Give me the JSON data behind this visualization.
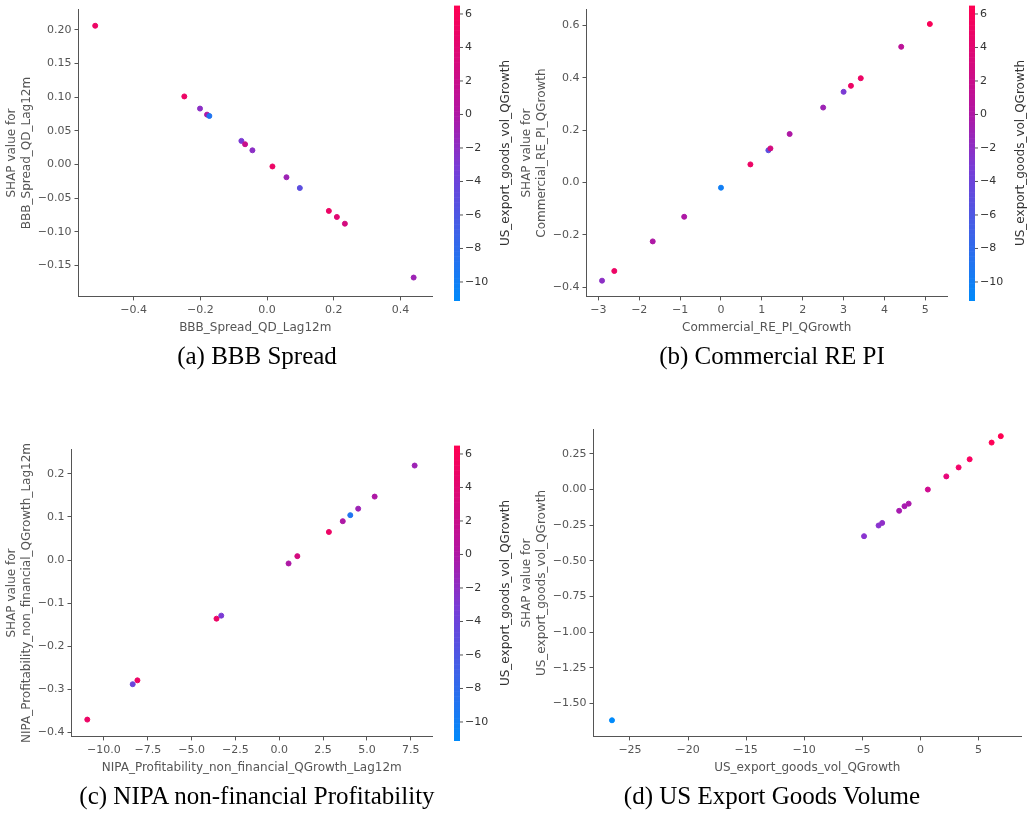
{
  "chart_data": [
    {
      "type": "scatter",
      "title": "(a) BBB Spread",
      "xlabel": "BBB_Spread_QD_Lag12m",
      "ylabel": "SHAP value for\nBBB_Spread_QD_Lag12m",
      "clabel": "US_export_goods_vol_QGrowth",
      "marker": "circle",
      "grid": false,
      "x": [
        -0.515,
        -0.248,
        -0.201,
        -0.18,
        -0.173,
        -0.077,
        -0.066,
        -0.044,
        0.016,
        0.058,
        0.098,
        0.185,
        0.209,
        0.233,
        0.439
      ],
      "values": [
        0.206,
        0.101,
        0.083,
        0.074,
        0.072,
        0.035,
        0.03,
        0.021,
        -0.003,
        -0.019,
        -0.035,
        -0.069,
        -0.078,
        -0.088,
        -0.168
      ],
      "cvalues": [
        5,
        5,
        -2,
        0,
        -9,
        -3,
        2,
        -2,
        5,
        -1,
        -5,
        5,
        4,
        3,
        -1
      ],
      "clim": [
        -11.1,
        6.5
      ],
      "cticks": [
        {
          "value": -10,
          "label": "−10"
        },
        {
          "value": -8,
          "label": "−8"
        },
        {
          "value": -6,
          "label": "−6"
        },
        {
          "value": -4,
          "label": "−4"
        },
        {
          "value": -2,
          "label": "−2"
        },
        0,
        2,
        4,
        6
      ],
      "xlim": [
        -0.565,
        0.494
      ],
      "xticks": [
        {
          "value": -0.4,
          "label": "−0.4"
        },
        {
          "value": -0.2,
          "label": "−0.2"
        },
        {
          "value": 0,
          "label": "0.0"
        },
        {
          "value": 0.2,
          "label": "0.2"
        },
        {
          "value": 0.4,
          "label": "0.4"
        }
      ],
      "ylim": [
        -0.196,
        0.23
      ],
      "yticks": [
        {
          "value": -0.15,
          "label": "−0.15"
        },
        {
          "value": -0.1,
          "label": "−0.10"
        },
        {
          "value": -0.05,
          "label": "−0.05"
        },
        {
          "value": 0,
          "label": "0.00"
        },
        {
          "value": 0.05,
          "label": "0.05"
        },
        {
          "value": 0.1,
          "label": "0.10"
        },
        {
          "value": 0.15,
          "label": "0.15"
        },
        {
          "value": 0.2,
          "label": "0.20"
        }
      ]
    },
    {
      "type": "scatter",
      "title": "(b) Commercial RE PI",
      "xlabel": "Commercial_RE_PI_QGrowth",
      "ylabel": "SHAP value for\nCommercial_RE_PI_QGrowth",
      "clabel": "US_export_goods_vol_QGrowth",
      "marker": "circle",
      "grid": false,
      "x": [
        -2.91,
        -2.61,
        -1.67,
        -0.9,
        0.0,
        0.72,
        1.16,
        1.21,
        1.68,
        2.5,
        3.0,
        3.18,
        3.42,
        4.41,
        5.11
      ],
      "values": [
        -0.375,
        -0.338,
        -0.225,
        -0.131,
        -0.02,
        0.069,
        0.123,
        0.13,
        0.185,
        0.286,
        0.346,
        0.369,
        0.398,
        0.518,
        0.605
      ],
      "cvalues": [
        -2,
        5,
        0,
        0,
        -10,
        5,
        -5,
        3,
        0,
        -1,
        -3,
        5,
        5,
        1,
        6
      ],
      "clim": [
        -11.1,
        6.5
      ],
      "cticks": [
        {
          "value": -10,
          "label": "−10"
        },
        {
          "value": -8,
          "label": "−8"
        },
        {
          "value": -6,
          "label": "−6"
        },
        {
          "value": -4,
          "label": "−4"
        },
        {
          "value": -2,
          "label": "−2"
        },
        0,
        2,
        4,
        6
      ],
      "xlim": [
        -3.29,
        5.53
      ],
      "xticks": [
        {
          "value": -3,
          "label": "−3"
        },
        {
          "value": -2,
          "label": "−2"
        },
        {
          "value": -1,
          "label": "−1"
        },
        0,
        1,
        2,
        3,
        4,
        5
      ],
      "ylim": [
        -0.435,
        0.66
      ],
      "yticks": [
        {
          "value": -0.4,
          "label": "−0.4"
        },
        {
          "value": -0.2,
          "label": "−0.2"
        },
        {
          "value": 0,
          "label": "0.0"
        },
        {
          "value": 0.2,
          "label": "0.2"
        },
        {
          "value": 0.4,
          "label": "0.4"
        },
        {
          "value": 0.6,
          "label": "0.6"
        }
      ]
    },
    {
      "type": "scatter",
      "title": "(c) NIPA non-financial Profitability",
      "xlabel": "NIPA_Profitability_non_financial_QGrowth_Lag12m",
      "ylabel": "SHAP value for\nNIPA_Profitability_non_financial_QGrowth_Lag12m",
      "clabel": "US_export_goods_vol_QGrowth",
      "marker": "circle",
      "grid": false,
      "x": [
        -10.95,
        -8.36,
        -8.09,
        -3.58,
        -3.31,
        0.53,
        1.03,
        2.83,
        3.62,
        4.05,
        4.5,
        5.44,
        7.72
      ],
      "values": [
        -0.37,
        -0.288,
        -0.279,
        -0.136,
        -0.129,
        -0.008,
        0.009,
        0.065,
        0.09,
        0.104,
        0.119,
        0.147,
        0.219
      ],
      "cvalues": [
        5,
        -4,
        5,
        5,
        -3,
        0,
        3,
        5,
        0,
        -9,
        -1,
        0,
        -1
      ],
      "clim": [
        -11.1,
        6.5
      ],
      "cticks": [
        {
          "value": -10,
          "label": "−10"
        },
        {
          "value": -8,
          "label": "−8"
        },
        {
          "value": -6,
          "label": "−6"
        },
        {
          "value": -4,
          "label": "−4"
        },
        {
          "value": -2,
          "label": "−2"
        },
        0,
        2,
        4,
        6
      ],
      "xlim": [
        -11.85,
        8.71
      ],
      "xticks": [
        {
          "value": -10,
          "label": "−10.0"
        },
        {
          "value": -7.5,
          "label": "−7.5"
        },
        {
          "value": -5,
          "label": "−5.0"
        },
        {
          "value": -2.5,
          "label": "−2.5"
        },
        {
          "value": 0,
          "label": "0.0"
        },
        {
          "value": 2.5,
          "label": "2.5"
        },
        {
          "value": 5,
          "label": "5.0"
        },
        {
          "value": 7.5,
          "label": "7.5"
        }
      ],
      "ylim": [
        -0.409,
        0.256
      ],
      "yticks": [
        {
          "value": -0.4,
          "label": "−0.4"
        },
        {
          "value": -0.3,
          "label": "−0.3"
        },
        {
          "value": -0.2,
          "label": "−0.2"
        },
        {
          "value": -0.1,
          "label": "−0.1"
        },
        {
          "value": 0,
          "label": "0.0"
        },
        {
          "value": 0.1,
          "label": "0.1"
        },
        {
          "value": 0.2,
          "label": "0.2"
        }
      ]
    },
    {
      "type": "scatter",
      "title": "(d) US Export Goods Volume",
      "xlabel": "US_export_goods_vol_QGrowth",
      "ylabel": "SHAP value for\nUS_export_goods_vol_QGrowth",
      "marker": "circle",
      "grid": false,
      "x": [
        -26.55,
        -4.85,
        -3.6,
        -3.29,
        -1.83,
        -1.37,
        -1.01,
        0.64,
        2.23,
        3.29,
        4.24,
        6.13,
        6.92
      ],
      "values": [
        -1.617,
        -0.327,
        -0.252,
        -0.234,
        -0.149,
        -0.117,
        -0.099,
        0.0,
        0.092,
        0.155,
        0.212,
        0.329,
        0.374
      ],
      "colors": [
        "#008afb",
        "#8a34d0",
        "#8a34d0",
        "#9030c8",
        "#a81cb0",
        "#a81cb0",
        "#ac1aac",
        "#d00c90",
        "#e8067a",
        "#f4036a",
        "#fa0262",
        "#ff0056",
        "#ff0052"
      ],
      "xlim": [
        -28.14,
        8.66
      ],
      "xticks": [
        {
          "value": -25,
          "label": "−25"
        },
        {
          "value": -20,
          "label": "−20"
        },
        {
          "value": -15,
          "label": "−15"
        },
        {
          "value": -10,
          "label": "−10"
        },
        {
          "value": -5,
          "label": "−5"
        },
        0,
        5
      ],
      "ylim": [
        -1.73,
        0.42
      ],
      "yticks": [
        {
          "value": -1.5,
          "label": "−1.50"
        },
        {
          "value": -1.25,
          "label": "−1.25"
        },
        {
          "value": -1,
          "label": "−1.00"
        },
        {
          "value": -0.75,
          "label": "−0.75"
        },
        {
          "value": -0.5,
          "label": "−0.50"
        },
        {
          "value": -0.25,
          "label": "−0.25"
        },
        {
          "value": 0,
          "label": "0.00"
        },
        {
          "value": 0.25,
          "label": "0.25"
        }
      ]
    }
  ]
}
